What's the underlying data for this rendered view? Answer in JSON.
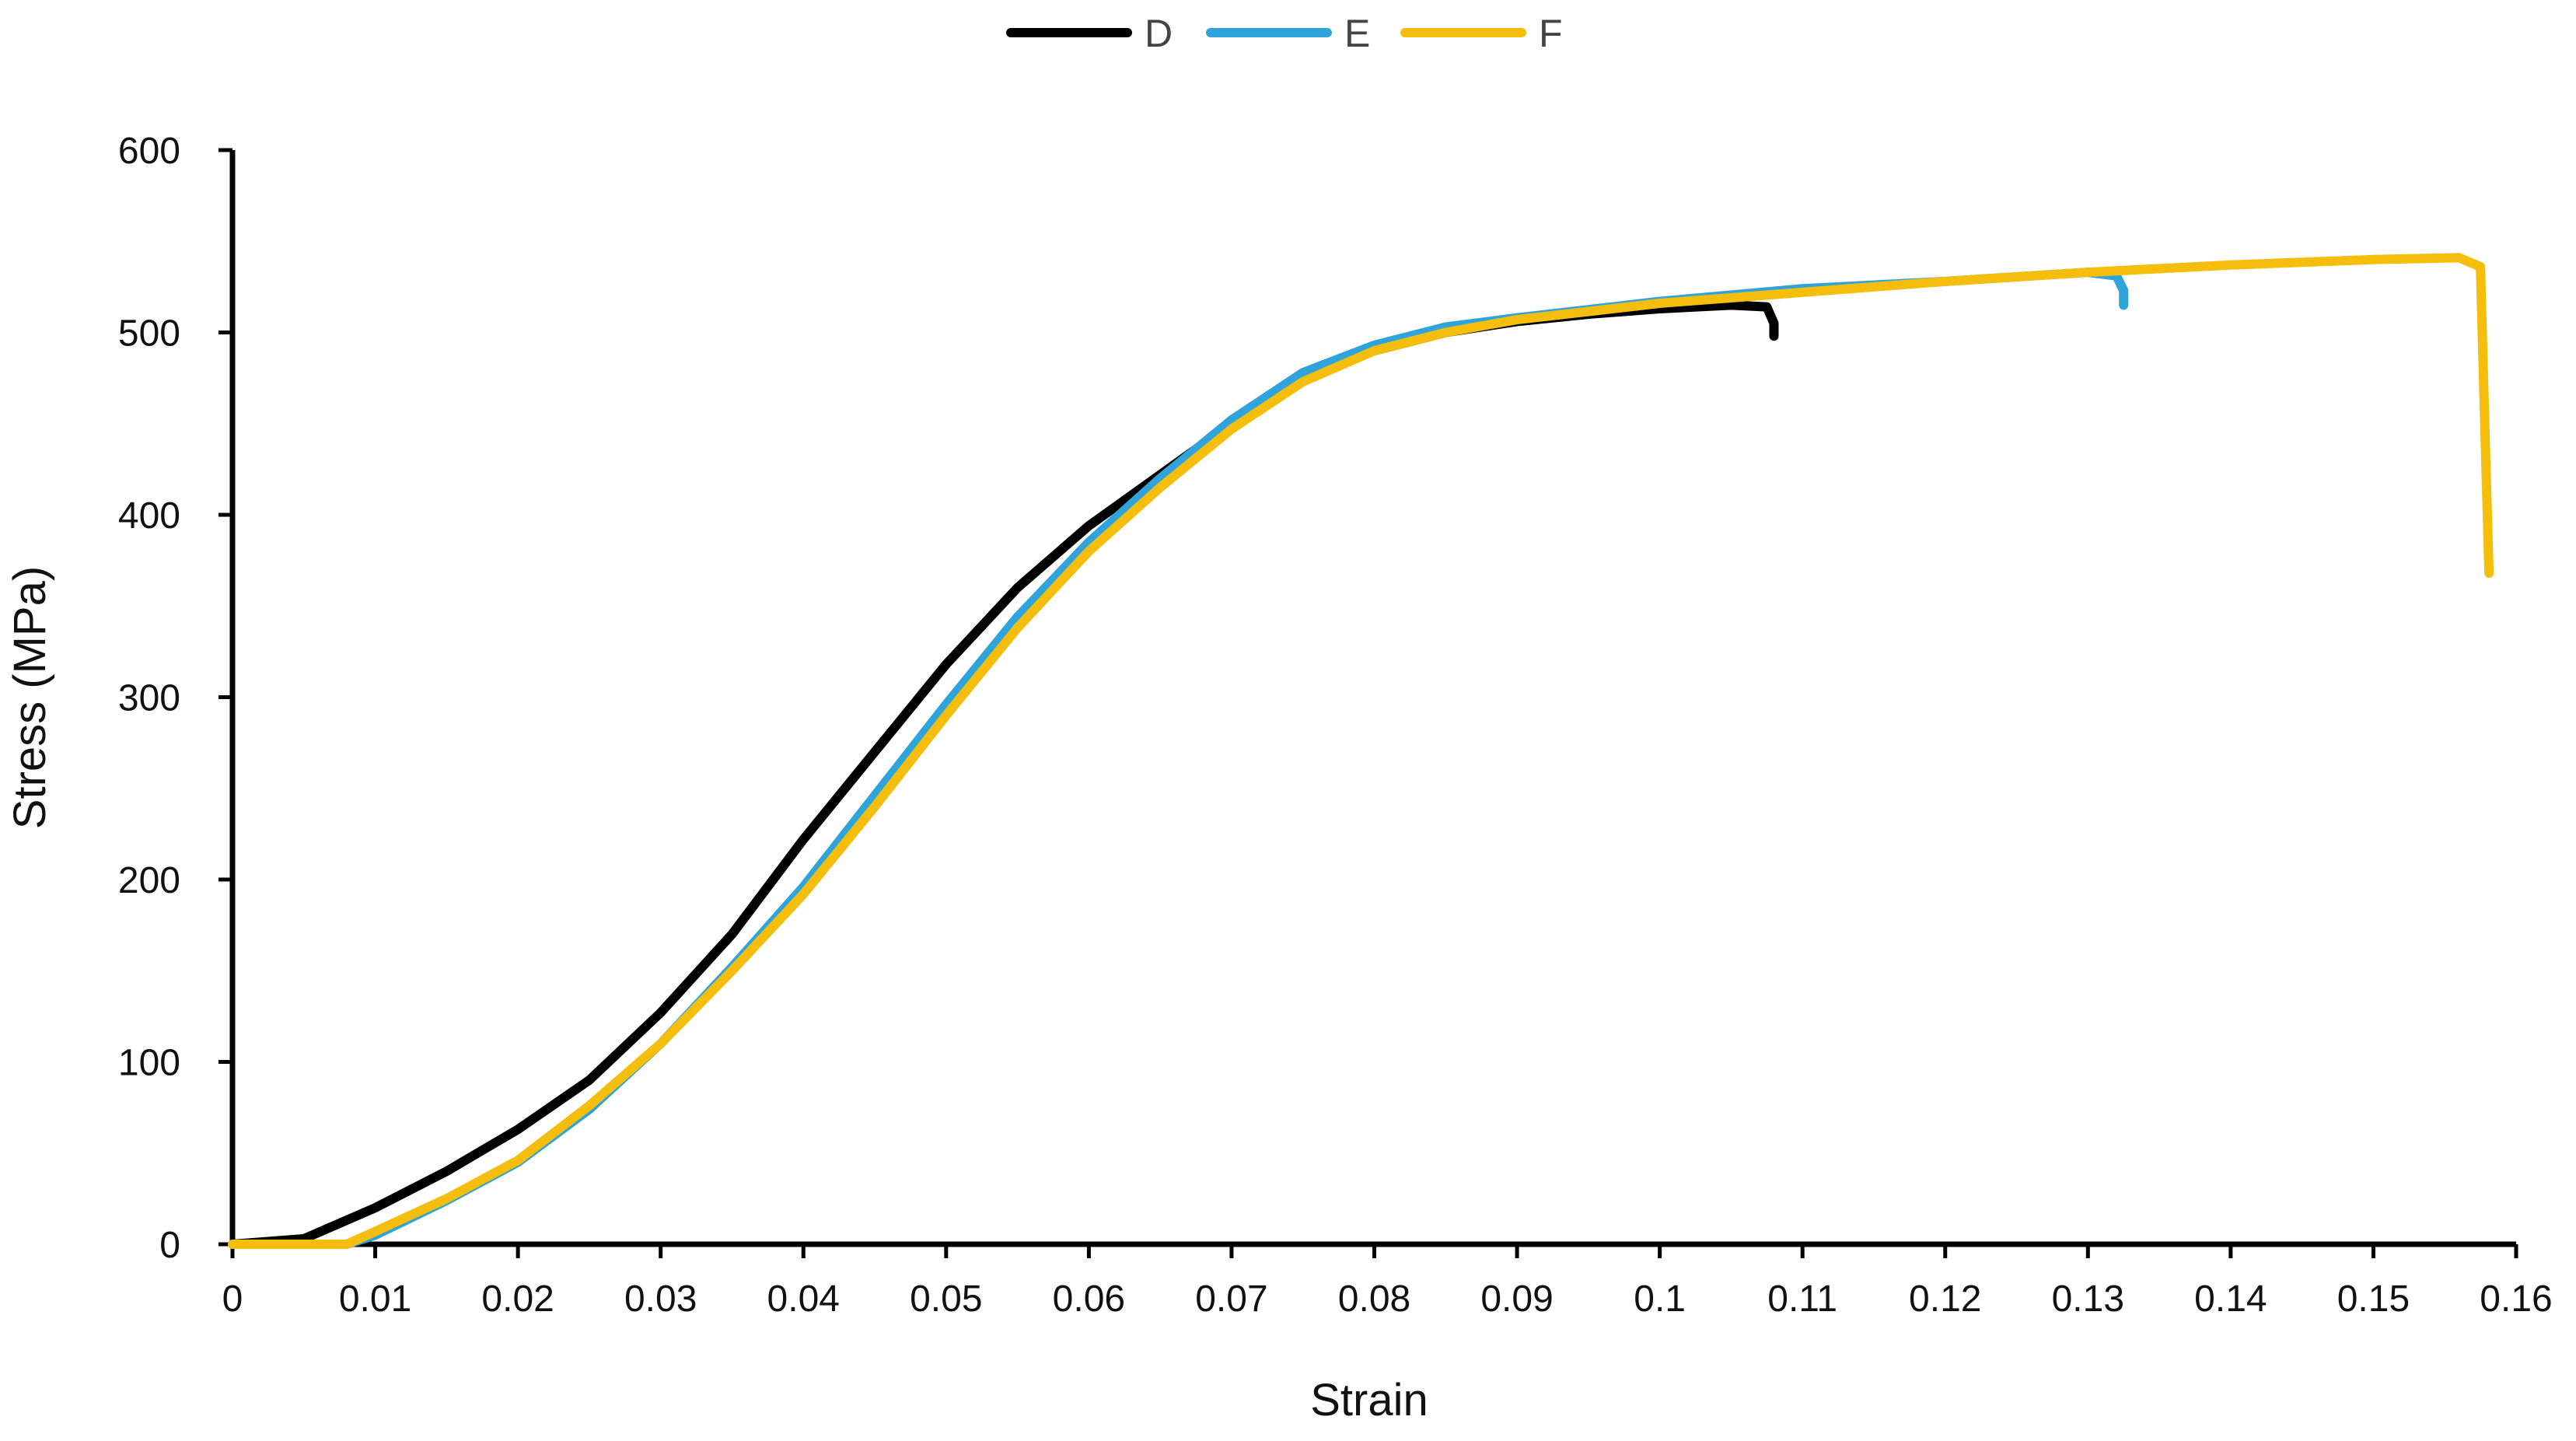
{
  "chart_data": {
    "type": "line",
    "title": "",
    "xlabel": "Strain",
    "ylabel": "Stress (MPa)",
    "xlim": [
      0,
      0.16
    ],
    "ylim": [
      0,
      600
    ],
    "x_ticks": [
      "0",
      "0.01",
      "0.02",
      "0.03",
      "0.04",
      "0.05",
      "0.06",
      "0.07",
      "0.08",
      "0.09",
      "0.1",
      "0.11",
      "0.12",
      "0.13",
      "0.14",
      "0.15",
      "0.16"
    ],
    "y_ticks": [
      "0",
      "100",
      "200",
      "300",
      "400",
      "500",
      "600"
    ],
    "grid": false,
    "legend_position": "top-center",
    "series": [
      {
        "name": "D",
        "color": "#000000",
        "points": [
          [
            0,
            0
          ],
          [
            0.005,
            3
          ],
          [
            0.01,
            20
          ],
          [
            0.015,
            40
          ],
          [
            0.02,
            63
          ],
          [
            0.025,
            90
          ],
          [
            0.03,
            127
          ],
          [
            0.035,
            170
          ],
          [
            0.04,
            222
          ],
          [
            0.045,
            270
          ],
          [
            0.05,
            318
          ],
          [
            0.055,
            360
          ],
          [
            0.06,
            394
          ],
          [
            0.065,
            422
          ],
          [
            0.07,
            450
          ],
          [
            0.075,
            475
          ],
          [
            0.08,
            490
          ],
          [
            0.085,
            500
          ],
          [
            0.09,
            506
          ],
          [
            0.095,
            510
          ],
          [
            0.1,
            513
          ],
          [
            0.105,
            515
          ],
          [
            0.1075,
            514
          ],
          [
            0.108,
            505
          ],
          [
            0.108,
            498
          ]
        ]
      },
      {
        "name": "E",
        "color": "#2FA4DB",
        "points": [
          [
            0,
            0
          ],
          [
            0.008,
            0
          ],
          [
            0.01,
            5
          ],
          [
            0.015,
            24
          ],
          [
            0.02,
            45
          ],
          [
            0.025,
            74
          ],
          [
            0.03,
            110
          ],
          [
            0.035,
            152
          ],
          [
            0.04,
            196
          ],
          [
            0.045,
            246
          ],
          [
            0.05,
            296
          ],
          [
            0.055,
            344
          ],
          [
            0.06,
            385
          ],
          [
            0.065,
            420
          ],
          [
            0.07,
            452
          ],
          [
            0.075,
            478
          ],
          [
            0.08,
            493
          ],
          [
            0.085,
            503
          ],
          [
            0.09,
            508
          ],
          [
            0.1,
            517
          ],
          [
            0.11,
            524
          ],
          [
            0.12,
            528
          ],
          [
            0.13,
            533
          ],
          [
            0.132,
            531
          ],
          [
            0.1325,
            523
          ],
          [
            0.1325,
            515
          ]
        ]
      },
      {
        "name": "F",
        "color": "#F5BE0C",
        "points": [
          [
            0,
            0
          ],
          [
            0.008,
            0
          ],
          [
            0.01,
            7
          ],
          [
            0.015,
            25
          ],
          [
            0.02,
            46
          ],
          [
            0.025,
            76
          ],
          [
            0.03,
            110
          ],
          [
            0.035,
            150
          ],
          [
            0.04,
            192
          ],
          [
            0.045,
            240
          ],
          [
            0.05,
            290
          ],
          [
            0.055,
            338
          ],
          [
            0.06,
            380
          ],
          [
            0.065,
            415
          ],
          [
            0.07,
            447
          ],
          [
            0.075,
            473
          ],
          [
            0.08,
            490
          ],
          [
            0.085,
            500
          ],
          [
            0.09,
            507
          ],
          [
            0.1,
            516
          ],
          [
            0.11,
            522
          ],
          [
            0.12,
            528
          ],
          [
            0.13,
            533
          ],
          [
            0.14,
            537
          ],
          [
            0.15,
            540
          ],
          [
            0.156,
            541
          ],
          [
            0.1575,
            536
          ],
          [
            0.1578,
            450
          ],
          [
            0.1581,
            368
          ]
        ]
      }
    ]
  }
}
